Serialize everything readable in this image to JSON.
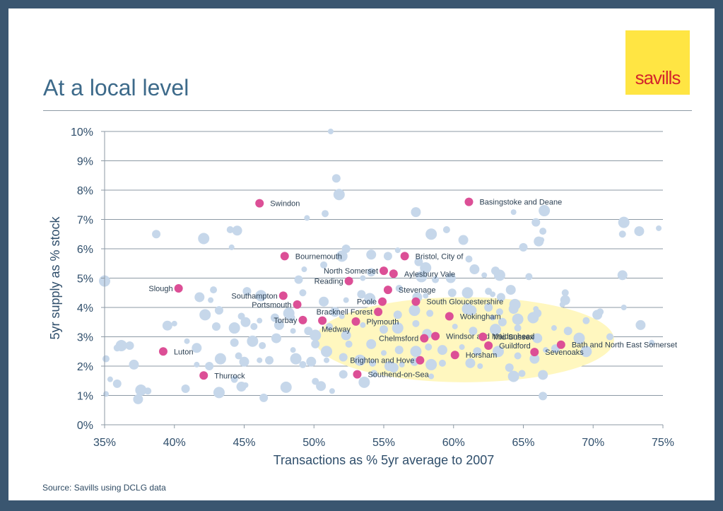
{
  "header": {
    "title": "At a local level",
    "logo_text": "savills"
  },
  "footer": {
    "source": "Source: Savills using DCLG data"
  },
  "colors": {
    "background": "#3a5670",
    "title": "#3d6a8a",
    "logo_bg": "#ffe543",
    "logo_text": "#d4262b",
    "highlight_point": "#dc4f96",
    "other_point": "#c6d7ea",
    "highlight_region": "#fff7bf",
    "grid": "#8d9aa5"
  },
  "chart_data": {
    "type": "scatter",
    "xlabel": "Transactions as % 5yr average to 2007",
    "ylabel": "5yr supply as % stock",
    "xlim": [
      35,
      75
    ],
    "ylim": [
      0,
      10
    ],
    "xticks": [
      "35%",
      "40%",
      "45%",
      "50%",
      "55%",
      "60%",
      "65%",
      "70%",
      "75%"
    ],
    "yticks": [
      "0%",
      "1%",
      "2%",
      "3%",
      "4%",
      "5%",
      "6%",
      "7%",
      "8%",
      "9%",
      "10%"
    ],
    "grid": "horizontal",
    "highlight_region": {
      "cx": 60.8,
      "cy": 2.9,
      "rx": 10.7,
      "ry": 1.45
    },
    "labelled_points": [
      {
        "name": "Swindon",
        "x": 46.1,
        "y": 7.55
      },
      {
        "name": "Basingstoke and Deane",
        "x": 61.1,
        "y": 7.6
      },
      {
        "name": "Bournemouth",
        "x": 47.9,
        "y": 5.75
      },
      {
        "name": "Bristol, City of",
        "x": 56.5,
        "y": 5.75
      },
      {
        "name": "North Somerset",
        "x": 55.0,
        "y": 5.25
      },
      {
        "name": "Aylesbury Vale",
        "x": 55.7,
        "y": 5.15
      },
      {
        "name": "Reading",
        "x": 52.5,
        "y": 4.9
      },
      {
        "name": "Slough",
        "x": 40.3,
        "y": 4.65
      },
      {
        "name": "Stevenage",
        "x": 55.3,
        "y": 4.6
      },
      {
        "name": "Southampton",
        "x": 47.8,
        "y": 4.4
      },
      {
        "name": "Poole",
        "x": 54.9,
        "y": 4.2
      },
      {
        "name": "South Gloucestershire",
        "x": 57.3,
        "y": 4.2
      },
      {
        "name": "Portsmouth",
        "x": 48.8,
        "y": 4.1
      },
      {
        "name": "Bracknell Forest",
        "x": 54.6,
        "y": 3.85
      },
      {
        "name": "Wokingham",
        "x": 59.7,
        "y": 3.7
      },
      {
        "name": "Torbay",
        "x": 49.2,
        "y": 3.57
      },
      {
        "name": "Plymouth",
        "x": 53.0,
        "y": 3.52
      },
      {
        "name": "Medway",
        "x": 50.6,
        "y": 3.55
      },
      {
        "name": "Windsor and Maidenhead",
        "x": 58.7,
        "y": 3.02
      },
      {
        "name": "Chelmsford",
        "x": 57.9,
        "y": 2.95
      },
      {
        "name": "Mid Sussex",
        "x": 62.1,
        "y": 3.0
      },
      {
        "name": "Bath and North East Somerset",
        "x": 67.7,
        "y": 2.73
      },
      {
        "name": "Guildford",
        "x": 62.5,
        "y": 2.7
      },
      {
        "name": "Sevenoaks",
        "x": 65.8,
        "y": 2.48
      },
      {
        "name": "Luton",
        "x": 39.2,
        "y": 2.5
      },
      {
        "name": "Horsham",
        "x": 60.1,
        "y": 2.38
      },
      {
        "name": "Brighton and Hove",
        "x": 57.6,
        "y": 2.2
      },
      {
        "name": "Thurrock",
        "x": 42.1,
        "y": 1.68
      },
      {
        "name": "Southend-on-Sea",
        "x": 53.1,
        "y": 1.72
      }
    ],
    "other_points": [
      [
        51.2,
        10.0
      ],
      [
        51.6,
        8.4
      ],
      [
        51.8,
        7.85
      ],
      [
        50.8,
        7.2
      ],
      [
        57.3,
        7.25
      ],
      [
        49.5,
        7.05
      ],
      [
        38.7,
        6.5
      ],
      [
        42.1,
        6.35
      ],
      [
        44.0,
        6.65
      ],
      [
        44.5,
        6.62
      ],
      [
        44.1,
        6.05
      ],
      [
        55.3,
        5.75
      ],
      [
        58.4,
        6.5
      ],
      [
        59.5,
        6.65
      ],
      [
        60.7,
        6.3
      ],
      [
        64.3,
        7.25
      ],
      [
        65.9,
        6.9
      ],
      [
        66.5,
        7.3
      ],
      [
        66.4,
        6.6
      ],
      [
        66.1,
        6.25
      ],
      [
        66.3,
        6.3
      ],
      [
        65.0,
        6.05
      ],
      [
        72.2,
        6.9
      ],
      [
        72.1,
        6.5
      ],
      [
        73.3,
        6.6
      ],
      [
        74.7,
        6.7
      ],
      [
        52.3,
        6.0
      ],
      [
        52.0,
        5.75
      ],
      [
        50.7,
        5.45
      ],
      [
        54.1,
        5.8
      ],
      [
        56.0,
        5.95
      ],
      [
        57.5,
        5.55
      ],
      [
        58.0,
        5.35
      ],
      [
        61.1,
        5.65
      ],
      [
        61.5,
        5.3
      ],
      [
        62.2,
        5.1
      ],
      [
        63.0,
        5.25
      ],
      [
        63.3,
        5.1
      ],
      [
        65.4,
        5.05
      ],
      [
        72.1,
        5.1
      ],
      [
        49.3,
        5.3
      ],
      [
        48.9,
        4.95
      ],
      [
        57.7,
        5.05
      ],
      [
        58.7,
        4.95
      ],
      [
        59.8,
        5.0
      ],
      [
        53.5,
        5.0
      ],
      [
        54.1,
        5.2
      ],
      [
        35.0,
        4.9
      ],
      [
        42.8,
        4.6
      ],
      [
        41.8,
        4.35
      ],
      [
        42.6,
        4.25
      ],
      [
        45.2,
        4.55
      ],
      [
        46.2,
        4.4
      ],
      [
        49.2,
        4.5
      ],
      [
        50.7,
        4.2
      ],
      [
        52.3,
        4.25
      ],
      [
        53.4,
        4.45
      ],
      [
        54.0,
        4.3
      ],
      [
        56.1,
        4.65
      ],
      [
        57.4,
        4.35
      ],
      [
        58.0,
        4.4
      ],
      [
        59.9,
        4.5
      ],
      [
        61.0,
        4.5
      ],
      [
        62.5,
        4.55
      ],
      [
        64.1,
        4.6
      ],
      [
        62.8,
        4.45
      ],
      [
        63.4,
        4.35
      ],
      [
        64.4,
        4.1
      ],
      [
        68.0,
        4.5
      ],
      [
        68.0,
        4.25
      ],
      [
        67.8,
        4.1
      ],
      [
        62.5,
        4.0
      ],
      [
        61.0,
        3.95
      ],
      [
        63.3,
        3.85
      ],
      [
        64.3,
        3.95
      ],
      [
        65.9,
        3.95
      ],
      [
        66.0,
        3.8
      ],
      [
        65.7,
        3.65
      ],
      [
        70.5,
        3.85
      ],
      [
        70.3,
        3.75
      ],
      [
        72.2,
        4.0
      ],
      [
        43.2,
        3.9
      ],
      [
        42.2,
        3.75
      ],
      [
        44.8,
        3.7
      ],
      [
        45.1,
        3.5
      ],
      [
        46.1,
        3.55
      ],
      [
        47.2,
        3.65
      ],
      [
        48.2,
        3.8
      ],
      [
        48.4,
        3.65
      ],
      [
        51.5,
        3.85
      ],
      [
        52.0,
        3.7
      ],
      [
        56.0,
        3.75
      ],
      [
        57.2,
        3.9
      ],
      [
        58.3,
        3.8
      ],
      [
        61.3,
        3.9
      ],
      [
        62.8,
        3.65
      ],
      [
        63.5,
        3.5
      ],
      [
        64.6,
        3.6
      ],
      [
        69.5,
        3.55
      ],
      [
        39.5,
        3.38
      ],
      [
        40.0,
        3.45
      ],
      [
        43.0,
        3.35
      ],
      [
        44.3,
        3.3
      ],
      [
        45.7,
        3.35
      ],
      [
        47.5,
        3.4
      ],
      [
        48.5,
        3.2
      ],
      [
        49.6,
        3.2
      ],
      [
        50.1,
        3.05
      ],
      [
        51.1,
        3.35
      ],
      [
        52.3,
        3.05
      ],
      [
        53.5,
        3.4
      ],
      [
        55.0,
        3.25
      ],
      [
        56.0,
        3.3
      ],
      [
        57.3,
        3.45
      ],
      [
        58.1,
        3.1
      ],
      [
        60.1,
        3.35
      ],
      [
        61.4,
        3.2
      ],
      [
        63.0,
        3.25
      ],
      [
        64.6,
        3.3
      ],
      [
        66.0,
        2.95
      ],
      [
        67.2,
        3.3
      ],
      [
        68.2,
        3.2
      ],
      [
        69.0,
        2.95
      ],
      [
        71.2,
        3.0
      ],
      [
        73.4,
        3.4
      ],
      [
        74.2,
        2.8
      ],
      [
        36.8,
        2.7
      ],
      [
        36.2,
        2.7
      ],
      [
        35.9,
        2.62
      ],
      [
        41.6,
        2.62
      ],
      [
        40.9,
        2.85
      ],
      [
        44.3,
        2.8
      ],
      [
        45.6,
        2.85
      ],
      [
        46.3,
        2.7
      ],
      [
        47.3,
        2.95
      ],
      [
        48.5,
        2.55
      ],
      [
        50.1,
        2.75
      ],
      [
        50.9,
        2.5
      ],
      [
        52.5,
        2.75
      ],
      [
        54.1,
        2.75
      ],
      [
        55.0,
        2.45
      ],
      [
        56.1,
        2.55
      ],
      [
        57.3,
        2.5
      ],
      [
        58.2,
        2.65
      ],
      [
        59.2,
        2.55
      ],
      [
        60.6,
        2.65
      ],
      [
        61.7,
        2.5
      ],
      [
        63.2,
        2.5
      ],
      [
        64.6,
        2.35
      ],
      [
        65.8,
        2.25
      ],
      [
        66.6,
        2.55
      ],
      [
        67.3,
        2.6
      ],
      [
        69.5,
        2.5
      ],
      [
        35.1,
        2.25
      ],
      [
        37.1,
        2.05
      ],
      [
        41.6,
        2.05
      ],
      [
        42.5,
        2.0
      ],
      [
        43.3,
        2.25
      ],
      [
        44.6,
        2.35
      ],
      [
        45.0,
        2.15
      ],
      [
        46.1,
        2.2
      ],
      [
        46.8,
        2.2
      ],
      [
        48.7,
        2.25
      ],
      [
        49.2,
        2.05
      ],
      [
        49.8,
        2.15
      ],
      [
        50.9,
        2.2
      ],
      [
        52.1,
        2.3
      ],
      [
        53.3,
        2.2
      ],
      [
        54.2,
        2.1
      ],
      [
        55.4,
        2.0
      ],
      [
        56.3,
        2.05
      ],
      [
        57.2,
        2.15
      ],
      [
        58.4,
        2.05
      ],
      [
        59.2,
        2.1
      ],
      [
        61.2,
        2.1
      ],
      [
        61.9,
        2.0
      ],
      [
        64.0,
        1.95
      ],
      [
        64.3,
        1.65
      ],
      [
        64.9,
        1.75
      ],
      [
        66.4,
        1.7
      ],
      [
        35.4,
        1.55
      ],
      [
        35.9,
        1.4
      ],
      [
        37.6,
        1.18
      ],
      [
        38.1,
        1.15
      ],
      [
        37.4,
        0.87
      ],
      [
        35.1,
        1.05
      ],
      [
        40.8,
        1.23
      ],
      [
        43.2,
        1.1
      ],
      [
        44.3,
        1.55
      ],
      [
        44.8,
        1.3
      ],
      [
        45.1,
        1.35
      ],
      [
        46.4,
        0.92
      ],
      [
        48.0,
        1.28
      ],
      [
        50.1,
        1.48
      ],
      [
        50.5,
        1.32
      ],
      [
        51.3,
        1.15
      ],
      [
        52.1,
        1.72
      ],
      [
        53.6,
        1.45
      ],
      [
        54.3,
        1.75
      ],
      [
        55.7,
        1.95
      ],
      [
        58.4,
        1.65
      ],
      [
        66.4,
        0.98
      ]
    ]
  }
}
